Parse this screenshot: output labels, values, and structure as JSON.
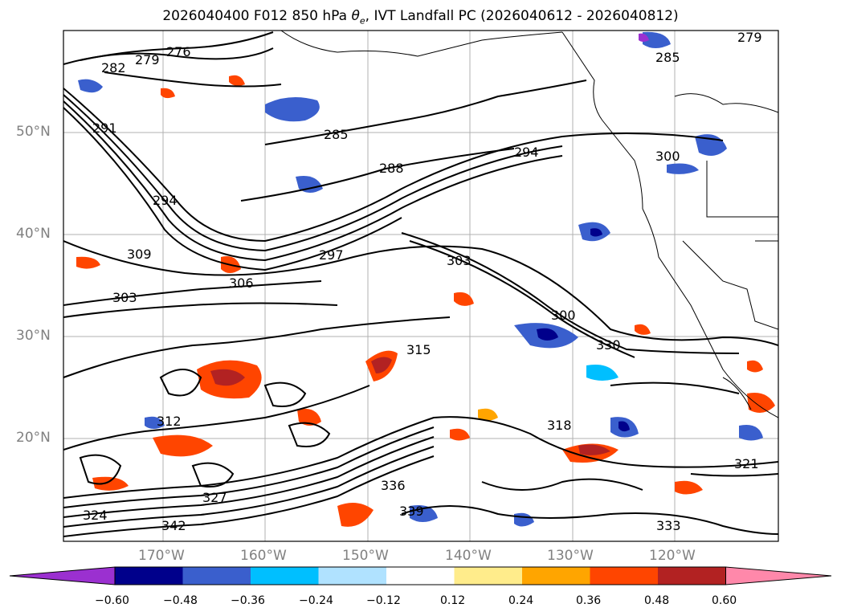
{
  "title": "2026040400 F012 850 hPa θe, IVT Landfall PC (2026040612 - 2026040812)",
  "title_prefix": "2026040400 F012 850 hPa ",
  "title_symbol": "θ",
  "title_sub": "e",
  "title_suffix": ", IVT Landfall PC (2026040612 - 2026040812)",
  "lat_labels": [
    "50°N",
    "40°N",
    "30°N",
    "20°N"
  ],
  "lon_labels": [
    "170°W",
    "160°W",
    "150°W",
    "140°W",
    "130°W",
    "120°W"
  ],
  "colorbar": {
    "ticks": [
      "−0.60",
      "−0.48",
      "−0.36",
      "−0.24",
      "−0.12",
      "0.12",
      "0.24",
      "0.36",
      "0.48",
      "0.60"
    ],
    "colors": [
      "#9b30d0",
      "#00008b",
      "#3a5fcd",
      "#00bfff",
      "#b0e2ff",
      "#ffffff",
      "#ffec8b",
      "#ffa500",
      "#ff4500",
      "#b22222",
      "#ff88aa"
    ]
  },
  "contour_labels": [
    "276",
    "279",
    "282",
    "285",
    "288",
    "291",
    "294",
    "297",
    "300",
    "303",
    "306",
    "309",
    "312",
    "315",
    "318",
    "321",
    "324",
    "327",
    "330",
    "333",
    "336",
    "339",
    "342",
    "279",
    "285",
    "294",
    "300",
    "303"
  ],
  "contour_color": "#000000"
}
